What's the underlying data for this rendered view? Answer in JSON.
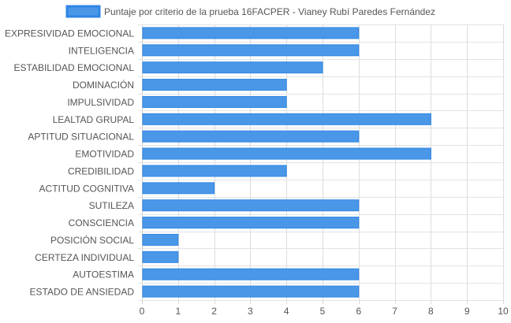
{
  "chart_data": {
    "type": "bar",
    "orientation": "horizontal",
    "categories": [
      "EXPRESIVIDAD EMOCIONAL",
      "INTELIGENCIA",
      "ESTABILIDAD EMOCIONAL",
      "DOMINACIÓN",
      "IMPULSIVIDAD",
      "LEALTAD GRUPAL",
      "APTITUD SITUACIONAL",
      "EMOTIVIDAD",
      "CREDIBILIDAD",
      "ACTITUD COGNITIVA",
      "SUTILEZA",
      "CONSCIENCIA",
      "POSICIÓN SOCIAL",
      "CERTEZA INDIVIDUAL",
      "AUTOESTIMA",
      "ESTADO DE ANSIEDAD"
    ],
    "series": [
      {
        "name": "Puntaje por criterio de la prueba 16FACPER - Vianey Rubí Paredes Fernández",
        "values": [
          6,
          6,
          5,
          4,
          4,
          8,
          6,
          8,
          4,
          2,
          6,
          6,
          1,
          1,
          6,
          6
        ]
      }
    ],
    "xlim": [
      0,
      10
    ],
    "xticks": [
      "0",
      "1",
      "2",
      "3",
      "4",
      "5",
      "6",
      "7",
      "8",
      "9",
      "10"
    ],
    "grid": true,
    "legend_position": "top",
    "colors": {
      "bar_fill": "#4a97e8",
      "bar_stroke": "#2f86e4",
      "grid": "#e3e3e3",
      "tick_text": "#555555"
    }
  }
}
